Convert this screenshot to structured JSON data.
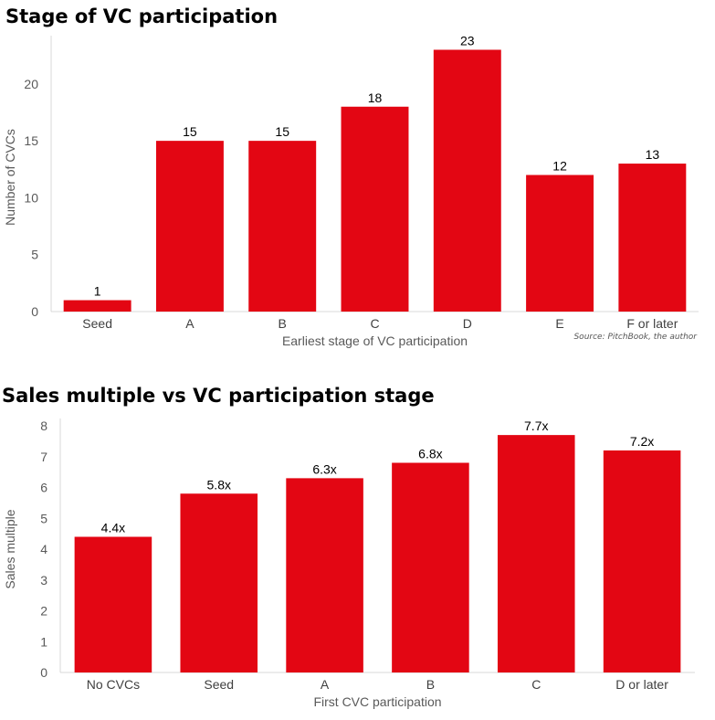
{
  "charts": [
    {
      "title": "Stage of VC participation",
      "source": "Source: PitchBook, the author",
      "xlabel": "Earliest stage of VC participation",
      "ylabel": "Number of CVCs"
    },
    {
      "title": "Sales multiple vs VC participation stage",
      "xlabel": "First CVC participation",
      "ylabel": "Sales multiple"
    }
  ],
  "chart_data": [
    {
      "type": "bar",
      "title": "Stage of VC participation",
      "categories": [
        "Seed",
        "A",
        "B",
        "C",
        "D",
        "E",
        "F or later"
      ],
      "values": [
        1,
        15,
        15,
        18,
        23,
        12,
        13
      ],
      "labels": [
        "1",
        "15",
        "15",
        "18",
        "23",
        "12",
        "13"
      ],
      "xlabel": "Earliest stage of VC participation",
      "ylabel": "Number of CVCs",
      "yticks": [
        0,
        5,
        10,
        15,
        20
      ],
      "ylim": [
        0,
        23.6
      ],
      "bar_color": "#e30613",
      "grid": false
    },
    {
      "type": "bar",
      "title": "Sales multiple vs VC participation stage",
      "categories": [
        "No CVCs",
        "Seed",
        "A",
        "B",
        "C",
        "D or later"
      ],
      "values": [
        4.4,
        5.8,
        6.3,
        6.8,
        7.7,
        7.2
      ],
      "labels": [
        "4.4x",
        "5.8x",
        "6.3x",
        "6.8x",
        "7.7x",
        "7.2x"
      ],
      "xlabel": "First CVC participation",
      "ylabel": "Sales multiple",
      "yticks": [
        0,
        1,
        2,
        3,
        4,
        5,
        6,
        7,
        8
      ],
      "ylim": [
        0,
        8
      ],
      "bar_color": "#e30613",
      "grid": false
    }
  ]
}
